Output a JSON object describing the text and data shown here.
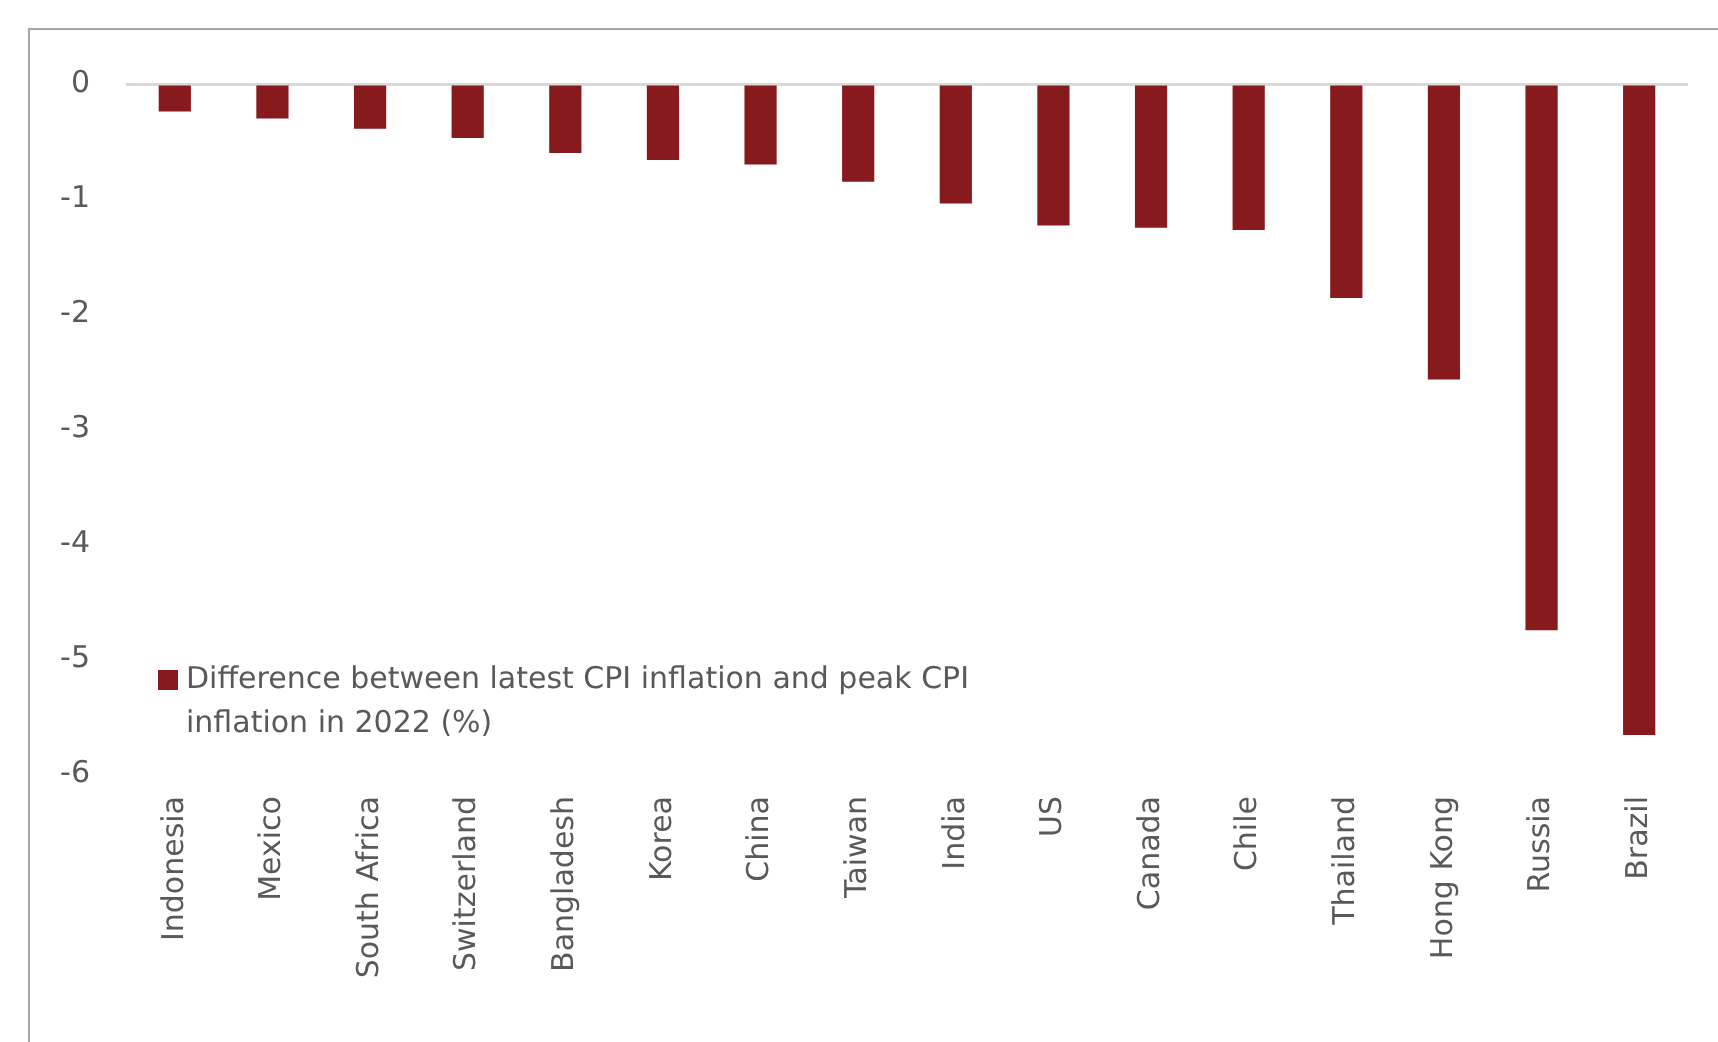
{
  "chart_data": {
    "type": "bar",
    "categories": [
      "Indonesia",
      "Mexico",
      "South Africa",
      "Switzerland",
      "Bangladesh",
      "Korea",
      "China",
      "Taiwan",
      "India",
      "US",
      "Canada",
      "Chile",
      "Thailand",
      "Hong Kong",
      "Russia",
      "Brazil"
    ],
    "series": [
      {
        "name": "Difference between latest CPI inflation and peak CPI inflation in 2022 (%)",
        "color": "#861a1c",
        "values": [
          -0.24,
          -0.3,
          -0.39,
          -0.47,
          -0.6,
          -0.66,
          -0.7,
          -0.85,
          -1.04,
          -1.23,
          -1.25,
          -1.27,
          -1.86,
          -2.57,
          -4.75,
          -5.66
        ]
      }
    ],
    "ylim": [
      -6,
      0
    ],
    "yticks": [
      -6,
      -5,
      -4,
      -3,
      -2,
      -1,
      0
    ],
    "grid": false,
    "legend": "bottom left"
  }
}
